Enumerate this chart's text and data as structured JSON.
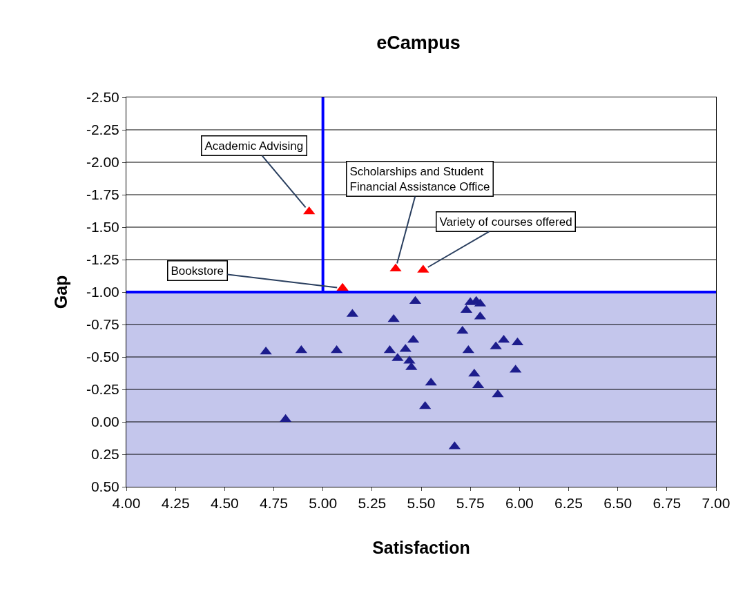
{
  "chart_data": {
    "type": "scatter",
    "title": "eCampus",
    "xlabel": "Satisfaction",
    "ylabel": "Gap",
    "xlim": [
      4.0,
      7.0
    ],
    "xticks": [
      {
        "value": 4.0,
        "label": "4.00"
      },
      {
        "value": 4.25,
        "label": "4.25"
      },
      {
        "value": 4.5,
        "label": "4.50"
      },
      {
        "value": 4.75,
        "label": "4.75"
      },
      {
        "value": 5.0,
        "label": "5.00"
      },
      {
        "value": 5.25,
        "label": "5.25"
      },
      {
        "value": 5.5,
        "label": "5.50"
      },
      {
        "value": 5.75,
        "label": "5.75"
      },
      {
        "value": 6.0,
        "label": "6.00"
      },
      {
        "value": 6.25,
        "label": "6.25"
      },
      {
        "value": 6.5,
        "label": "6.50"
      },
      {
        "value": 6.75,
        "label": "6.75"
      },
      {
        "value": 7.0,
        "label": "7.00"
      }
    ],
    "ylim": [
      0.5,
      -2.5
    ],
    "yticks": [
      {
        "value": -2.5,
        "label": "-2.50"
      },
      {
        "value": -2.25,
        "label": "-2.25"
      },
      {
        "value": -2.0,
        "label": "-2.00"
      },
      {
        "value": -1.75,
        "label": "-1.75"
      },
      {
        "value": -1.5,
        "label": "-1.50"
      },
      {
        "value": -1.25,
        "label": "-1.25"
      },
      {
        "value": -1.0,
        "label": "-1.00"
      },
      {
        "value": -0.75,
        "label": "-0.75"
      },
      {
        "value": -0.5,
        "label": "-0.50"
      },
      {
        "value": -0.25,
        "label": "-0.25"
      },
      {
        "value": 0.0,
        "label": "0.00"
      },
      {
        "value": 0.25,
        "label": "0.25"
      },
      {
        "value": 0.5,
        "label": "0.50"
      }
    ],
    "grid": "y",
    "legend": false,
    "marker": "triangle",
    "series": [
      {
        "color": "#ff0000",
        "x": [
          4.93,
          5.37,
          5.51,
          5.1
        ],
        "values": [
          -1.62,
          -1.18,
          -1.17,
          -1.03
        ]
      },
      {
        "color": "#1c1c8c",
        "x": [
          5.47,
          5.15,
          5.36,
          5.71,
          4.71,
          4.89,
          5.07,
          5.34,
          5.38,
          5.42,
          5.46,
          5.44,
          5.45,
          5.55,
          5.52,
          4.81,
          5.67,
          5.74,
          5.77,
          5.79,
          5.73,
          5.75,
          5.78,
          5.8,
          5.8,
          5.88,
          5.92,
          5.99,
          5.98,
          5.89
        ],
        "values": [
          -0.93,
          -0.83,
          -0.79,
          -0.7,
          -0.54,
          -0.55,
          -0.55,
          -0.55,
          -0.49,
          -0.56,
          -0.63,
          -0.47,
          -0.42,
          -0.3,
          -0.12,
          -0.02,
          0.19,
          -0.55,
          -0.37,
          -0.28,
          -0.86,
          -0.92,
          -0.93,
          -0.91,
          -0.81,
          -0.58,
          -0.63,
          -0.61,
          -0.4,
          -0.21
        ]
      }
    ],
    "ref_lines": [
      {
        "axis": "x",
        "value": 5.0,
        "color": "#0000ff"
      },
      {
        "axis": "y",
        "value": -1.0,
        "color": "#0000ff"
      }
    ],
    "bands": [
      {
        "axis": "y",
        "from": -1.0,
        "to": 0.5,
        "color": "#c4c6ec"
      }
    ],
    "annotations": [
      {
        "text": "Academic Advising",
        "x": 4.93,
        "y": -1.62
      },
      {
        "text": "Scholarships and Student\nFinancial Assistance Office",
        "x": 5.37,
        "y": -1.18
      },
      {
        "text": "Variety of courses offered",
        "x": 5.51,
        "y": -1.17
      },
      {
        "text": "Bookstore",
        "x": 5.1,
        "y": -1.03
      }
    ]
  }
}
